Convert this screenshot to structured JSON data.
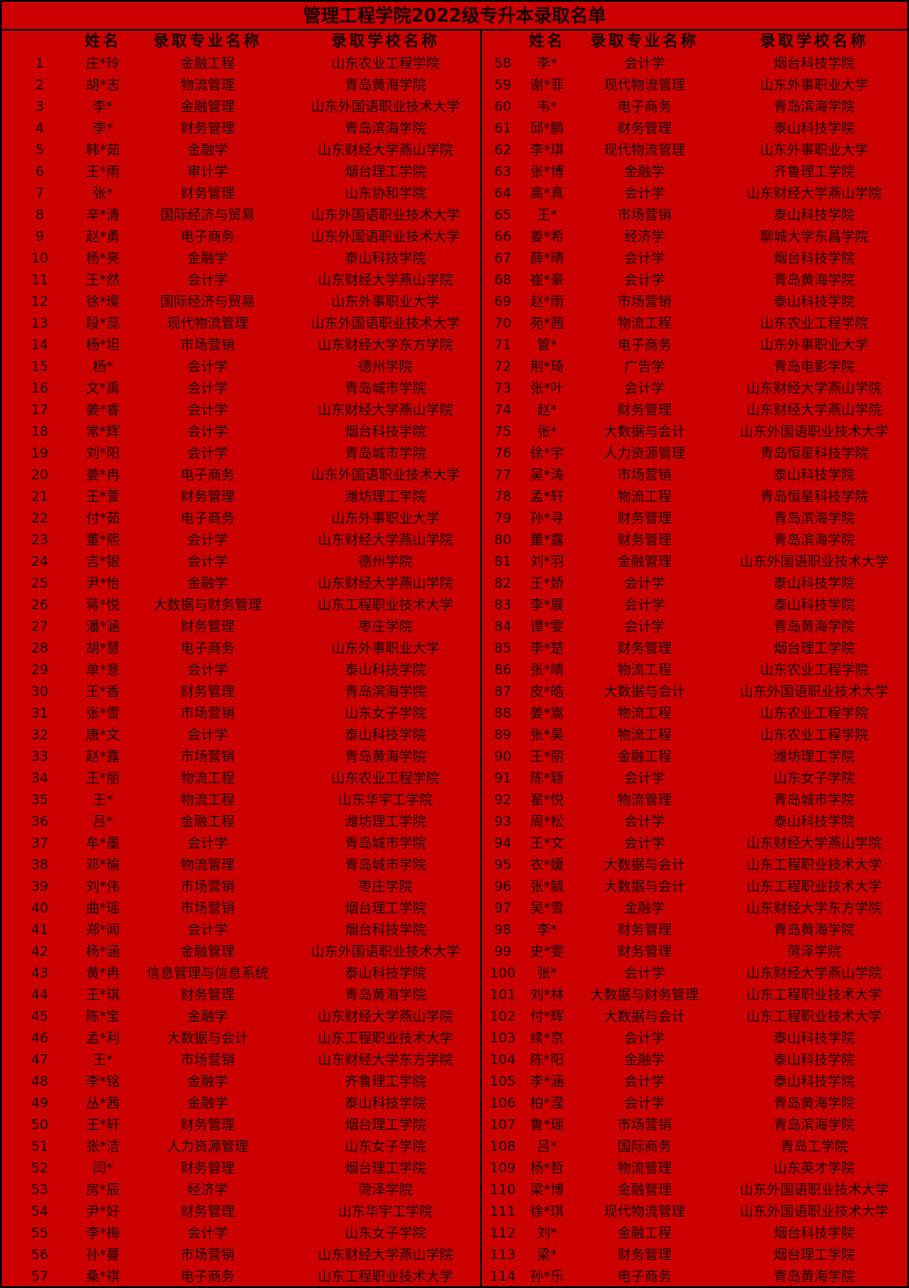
{
  "title": "管理工程学院2022级专升本录取名单",
  "headers": {
    "name": "姓名",
    "major": "录取专业名称",
    "school": "录取学校名称"
  },
  "colors": {
    "background": "#cc0000",
    "text": "#1a0000",
    "border": "#000000"
  },
  "rows": [
    [
      "1",
      "庄*玲",
      "金融工程",
      "山东农业工程学院"
    ],
    [
      "2",
      "胡*志",
      "物流管理",
      "青岛黄海学院"
    ],
    [
      "3",
      "李*",
      "金融管理",
      "山东外国语职业技术大学"
    ],
    [
      "4",
      "李*",
      "财务管理",
      "青岛滨海学院"
    ],
    [
      "5",
      "韩*茹",
      "金融学",
      "山东财经大学燕山学院"
    ],
    [
      "6",
      "王*雨",
      "审计学",
      "烟台理工学院"
    ],
    [
      "7",
      "张*",
      "财务管理",
      "山东协和学院"
    ],
    [
      "8",
      "辛*清",
      "国际经济与贸易",
      "山东外国语职业技术大学"
    ],
    [
      "9",
      "赵*勇",
      "电子商务",
      "山东外国语职业技术大学"
    ],
    [
      "10",
      "杨*亮",
      "金融学",
      "泰山科技学院"
    ],
    [
      "11",
      "王*然",
      "会计学",
      "山东财经大学燕山学院"
    ],
    [
      "12",
      "徐*璨",
      "国际经济与贸易",
      "山东外事职业大学"
    ],
    [
      "13",
      "段*蕊",
      "现代物流管理",
      "山东外国语职业技术大学"
    ],
    [
      "14",
      "杨*坦",
      "市场营销",
      "山东财经大学东方学院"
    ],
    [
      "15",
      "杨*",
      "会计学",
      "德州学院"
    ],
    [
      "16",
      "文*禹",
      "会计学",
      "青岛城市学院"
    ],
    [
      "17",
      "姜*睿",
      "会计学",
      "山东财经大学燕山学院"
    ],
    [
      "18",
      "常*辉",
      "会计学",
      "烟台科技学院"
    ],
    [
      "19",
      "刘*阳",
      "会计学",
      "青岛城市学院"
    ],
    [
      "20",
      "姜*冉",
      "电子商务",
      "山东外国语职业技术大学"
    ],
    [
      "21",
      "王*萱",
      "财务管理",
      "潍坊理工学院"
    ],
    [
      "22",
      "付*茹",
      "电子商务",
      "山东外事职业大学"
    ],
    [
      "23",
      "董*熙",
      "会计学",
      "山东财经大学燕山学院"
    ],
    [
      "24",
      "吉*银",
      "会计学",
      "德州学院"
    ],
    [
      "25",
      "尹*怡",
      "金融学",
      "山东财经大学燕山学院"
    ],
    [
      "26",
      "蒋*悦",
      "大数据与财务管理",
      "山东工程职业技术大学"
    ],
    [
      "27",
      "潘*涵",
      "财务管理",
      "枣庄学院"
    ],
    [
      "28",
      "胡*慧",
      "电子商务",
      "山东外事职业大学"
    ],
    [
      "29",
      "单*意",
      "会计学",
      "泰山科技学院"
    ],
    [
      "30",
      "王*香",
      "财务管理",
      "青岛滨海学院"
    ],
    [
      "31",
      "张*雪",
      "市场营销",
      "山东女子学院"
    ],
    [
      "32",
      "唐*文",
      "会计学",
      "泰山科技学院"
    ],
    [
      "33",
      "赵*露",
      "市场营销",
      "青岛黄海学院"
    ],
    [
      "34",
      "王*丽",
      "物流工程",
      "山东农业工程学院"
    ],
    [
      "35",
      "王*",
      "物流工程",
      "山东华宇工学院"
    ],
    [
      "36",
      "吕*",
      "金融工程",
      "潍坊理工学院"
    ],
    [
      "37",
      "牟*墨",
      "会计学",
      "青岛城市学院"
    ],
    [
      "38",
      "邓*瑜",
      "物流管理",
      "青岛城市学院"
    ],
    [
      "39",
      "刘*伟",
      "市场营销",
      "枣庄学院"
    ],
    [
      "40",
      "曲*瑶",
      "市场营销",
      "烟台理工学院"
    ],
    [
      "41",
      "郑*闻",
      "会计学",
      "烟台科技学院"
    ],
    [
      "42",
      "杨*涵",
      "金融管理",
      "山东外国语职业技术大学"
    ],
    [
      "43",
      "黄*冉",
      "信息管理与信息系统",
      "泰山科技学院"
    ],
    [
      "44",
      "王*琪",
      "财务管理",
      "青岛黄海学院"
    ],
    [
      "45",
      "陈*宝",
      "金融学",
      "山东财经大学燕山学院"
    ],
    [
      "46",
      "孟*利",
      "大数据与会计",
      "山东工程职业技术大学"
    ],
    [
      "47",
      "王*",
      "市场营销",
      "山东财经大学东方学院"
    ],
    [
      "48",
      "李*铭",
      "金融学",
      "齐鲁理工学院"
    ],
    [
      "49",
      "丛*茜",
      "金融学",
      "泰山科技学院"
    ],
    [
      "50",
      "王*轩",
      "财务管理",
      "烟台理工学院"
    ],
    [
      "51",
      "张*洁",
      "人力资源管理",
      "山东女子学院"
    ],
    [
      "52",
      "闫*",
      "财务管理",
      "烟台理工学院"
    ],
    [
      "53",
      "房*辰",
      "经济学",
      "菏泽学院"
    ],
    [
      "54",
      "尹*好",
      "财务管理",
      "山东华宇工学院"
    ],
    [
      "55",
      "李*梅",
      "会计学",
      "山东女子学院"
    ],
    [
      "56",
      "孙*蔓",
      "市场营销",
      "山东财经大学燕山学院"
    ],
    [
      "57",
      "桑*祺",
      "电子商务",
      "山东工程职业技术大学"
    ],
    [
      "58",
      "李*",
      "会计学",
      "烟台科技学院"
    ],
    [
      "59",
      "谢*菲",
      "现代物流管理",
      "山东外事职业大学"
    ],
    [
      "60",
      "韦*",
      "电子商务",
      "青岛滨海学院"
    ],
    [
      "61",
      "邱*鹏",
      "财务管理",
      "泰山科技学院"
    ],
    [
      "62",
      "李*琪",
      "现代物流管理",
      "山东外事职业大学"
    ],
    [
      "63",
      "张*博",
      "金融学",
      "齐鲁理工学院"
    ],
    [
      "64",
      "高*真",
      "会计学",
      "山东财经大学燕山学院"
    ],
    [
      "65",
      "王*",
      "市场营销",
      "泰山科技学院"
    ],
    [
      "66",
      "姜*希",
      "经济学",
      "聊城大学东昌学院"
    ],
    [
      "67",
      "薛*晴",
      "会计学",
      "烟台科技学院"
    ],
    [
      "68",
      "崔*豪",
      "会计学",
      "青岛黄海学院"
    ],
    [
      "69",
      "赵*雨",
      "市场营销",
      "泰山科技学院"
    ],
    [
      "70",
      "苑*茜",
      "物流工程",
      "山东农业工程学院"
    ],
    [
      "71",
      "管*",
      "电子商务",
      "山东外事职业大学"
    ],
    [
      "72",
      "荆*琦",
      "广告学",
      "青岛电影学院"
    ],
    [
      "73",
      "张*叶",
      "会计学",
      "山东财经大学燕山学院"
    ],
    [
      "74",
      "赵*",
      "财务管理",
      "山东财经大学燕山学院"
    ],
    [
      "75",
      "张*",
      "大数据与会计",
      "山东外国语职业技术大学"
    ],
    [
      "76",
      "徐*宇",
      "人力资源管理",
      "青岛恒星科技学院"
    ],
    [
      "77",
      "吴*涛",
      "市场营销",
      "泰山科技学院"
    ],
    [
      "78",
      "孟*轩",
      "物流工程",
      "青岛恒星科技学院"
    ],
    [
      "79",
      "孙*寻",
      "财务管理",
      "青岛滨海学院"
    ],
    [
      "80",
      "董*露",
      "财务管理",
      "青岛滨海学院"
    ],
    [
      "81",
      "刘*羽",
      "金融管理",
      "山东外国语职业技术大学"
    ],
    [
      "82",
      "王*娇",
      "会计学",
      "泰山科技学院"
    ],
    [
      "83",
      "李*展",
      "会计学",
      "泰山科技学院"
    ],
    [
      "84",
      "谭*雯",
      "会计学",
      "青岛黄海学院"
    ],
    [
      "85",
      "李*楚",
      "财务管理",
      "烟台理工学院"
    ],
    [
      "86",
      "张*晴",
      "物流工程",
      "山东农业工程学院"
    ],
    [
      "87",
      "皮*皓",
      "大数据与会计",
      "山东外国语职业技术大学"
    ],
    [
      "88",
      "姜*嵩",
      "物流工程",
      "山东农业工程学院"
    ],
    [
      "89",
      "张*昊",
      "物流工程",
      "山东农业工程学院"
    ],
    [
      "90",
      "王*丽",
      "金融工程",
      "潍坊理工学院"
    ],
    [
      "91",
      "陈*颖",
      "会计学",
      "山东女子学院"
    ],
    [
      "92",
      "翟*悦",
      "物流管理",
      "青岛城市学院"
    ],
    [
      "93",
      "周*松",
      "会计学",
      "泰山科技学院"
    ],
    [
      "94",
      "王*文",
      "会计学",
      "山东财经大学燕山学院"
    ],
    [
      "95",
      "衣*媛",
      "大数据与会计",
      "山东工程职业技术大学"
    ],
    [
      "96",
      "张*毓",
      "大数据与会计",
      "山东工程职业技术大学"
    ],
    [
      "97",
      "吴*雪",
      "金融学",
      "山东财经大学东方学院"
    ],
    [
      "98",
      "李*",
      "财务管理",
      "青岛黄海学院"
    ],
    [
      "99",
      "史*雯",
      "财务管理",
      "菏泽学院"
    ],
    [
      "100",
      "张*",
      "会计学",
      "山东财经大学燕山学院"
    ],
    [
      "101",
      "刘*林",
      "大数据与财务管理",
      "山东工程职业技术大学"
    ],
    [
      "102",
      "付*辉",
      "大数据与会计",
      "山东工程职业技术大学"
    ],
    [
      "103",
      "续*京",
      "会计学",
      "泰山科技学院"
    ],
    [
      "104",
      "陈*阳",
      "金融学",
      "泰山科技学院"
    ],
    [
      "105",
      "李*涵",
      "会计学",
      "泰山科技学院"
    ],
    [
      "106",
      "柏*滢",
      "会计学",
      "青岛黄海学院"
    ],
    [
      "107",
      "鲁*瑶",
      "市场营销",
      "青岛滨海学院"
    ],
    [
      "108",
      "吕*",
      "国际商务",
      "青岛工学院"
    ],
    [
      "109",
      "杨*哲",
      "物流管理",
      "山东英才学院"
    ],
    [
      "110",
      "梁*博",
      "金融管理",
      "山东外国语职业技术大学"
    ],
    [
      "111",
      "徐*琪",
      "现代物流管理",
      "山东外国语职业技术大学"
    ],
    [
      "112",
      "刘*",
      "金融工程",
      "烟台科技学院"
    ],
    [
      "113",
      "梁*",
      "财务管理",
      "烟台理工学院"
    ],
    [
      "114",
      "孙*乐",
      "电子商务",
      "青岛黄海学院"
    ]
  ]
}
